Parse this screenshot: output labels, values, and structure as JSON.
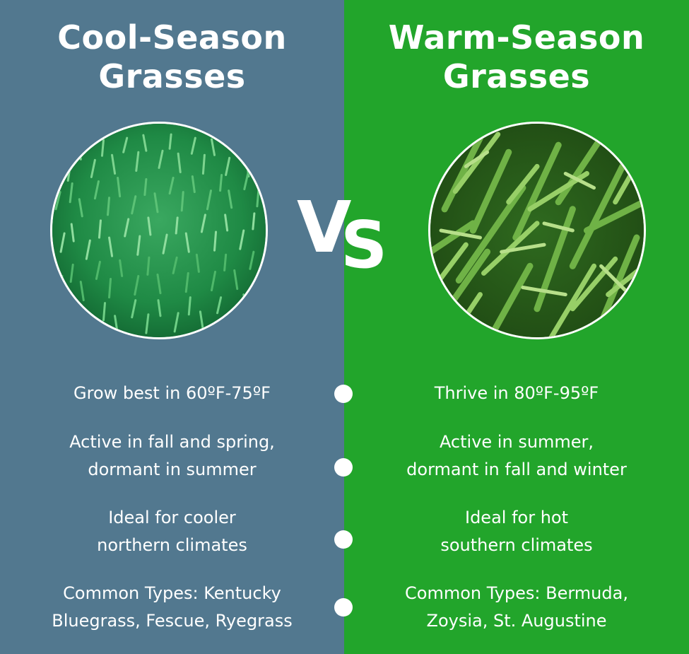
{
  "colors": {
    "cool_panel": "#52788f",
    "warm_panel": "#22a52b",
    "text": "#ffffff"
  },
  "cool": {
    "title_line1": "Cool-Season",
    "title_line2": "Grasses",
    "features": [
      {
        "line1": "Grow best in 60ºF-75ºF",
        "line2": ""
      },
      {
        "line1": "Active in fall and spring,",
        "line2": "dormant in summer"
      },
      {
        "line1": "Ideal for cooler",
        "line2": "northern climates"
      },
      {
        "line1": "Common Types: Kentucky",
        "line2": "Bluegrass, Fescue, Ryegrass"
      }
    ]
  },
  "warm": {
    "title_line1": "Warm-Season",
    "title_line2": "Grasses",
    "features": [
      {
        "line1": "Thrive in 80ºF-95ºF",
        "line2": ""
      },
      {
        "line1": "Active in summer,",
        "line2": "dormant in fall and winter"
      },
      {
        "line1": "Ideal for hot",
        "line2": "southern climates"
      },
      {
        "line1": "Common Types: Bermuda,",
        "line2": "Zoysia, St. Augustine"
      }
    ]
  },
  "versus": {
    "v": "V",
    "s": "S"
  },
  "icons": [
    "cool-grass-photo",
    "warm-grass-photo",
    "timeline-dot"
  ]
}
